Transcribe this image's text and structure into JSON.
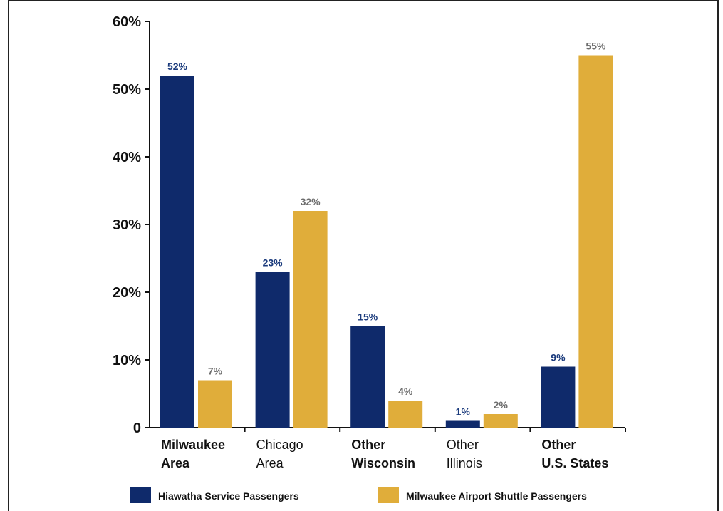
{
  "chart_data": {
    "type": "bar",
    "categories": [
      {
        "lines": [
          "Milwaukee",
          "Area"
        ],
        "bold": true
      },
      {
        "lines": [
          "Chicago",
          "Area"
        ],
        "bold": false
      },
      {
        "lines": [
          "Other",
          "Wisconsin"
        ],
        "bold": true
      },
      {
        "lines": [
          "Other",
          "Illinois"
        ],
        "bold": false
      },
      {
        "lines": [
          "Other",
          "U.S. States"
        ],
        "bold": true
      }
    ],
    "series": [
      {
        "name": "Hiawatha Service Passengers",
        "color": "#0f2a6b",
        "label_color": "#1a3a7c",
        "values": [
          52,
          23,
          15,
          1,
          9
        ],
        "labels": [
          "52%",
          "23%",
          "15%",
          "1%",
          "9%"
        ]
      },
      {
        "name": "Milwaukee Airport Shuttle Passengers",
        "color": "#e0ad3a",
        "label_color": "#6e6e6e",
        "values": [
          7,
          32,
          4,
          2,
          55
        ],
        "labels": [
          "7%",
          "32%",
          "4%",
          "2%",
          "55%"
        ]
      }
    ],
    "ylim": [
      0,
      60
    ],
    "yticks": [
      {
        "value": 0,
        "label": "0"
      },
      {
        "value": 10,
        "label": "10%"
      },
      {
        "value": 20,
        "label": "20%"
      },
      {
        "value": 30,
        "label": "30%"
      },
      {
        "value": 40,
        "label": "40%"
      },
      {
        "value": 50,
        "label": "50%"
      },
      {
        "value": 60,
        "label": "60%"
      }
    ],
    "grid": false,
    "legend_position": "bottom"
  }
}
